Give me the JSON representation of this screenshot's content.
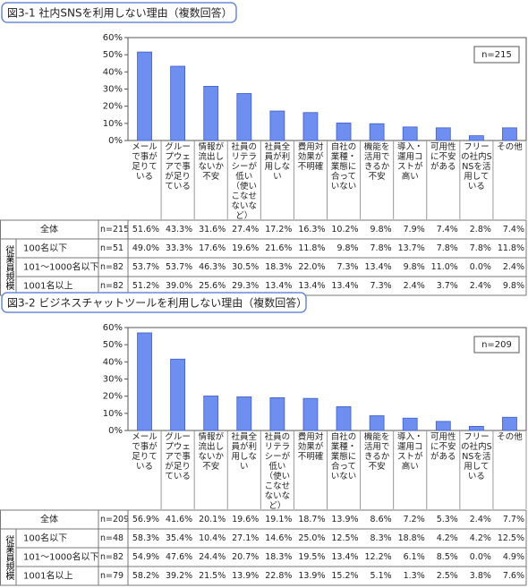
{
  "chart_data": [
    {
      "type": "bar",
      "title": "図3-1 社内SNSを利用しない理由（複数回答）",
      "n_label": "n=215",
      "categories": [
        "メールで事が足りている",
        "グループウェアで事が足りている",
        "情報が流出しないか不安",
        "社員のリテラシーが低い（使いこなせないなど）",
        "社員全員が利用しない",
        "費用対効果が不明確",
        "自社の業種・業態に合っていない",
        "機能を活用できるか不安",
        "導入・運用コストが高い",
        "可用性に不安がある",
        "フリーの社内SNSを活用している",
        "その他"
      ],
      "values": [
        51.6,
        43.3,
        31.6,
        27.4,
        17.2,
        16.3,
        10.2,
        9.8,
        7.9,
        7.4,
        2.8,
        7.4
      ],
      "value_labels": [
        "51.6%",
        "43.3%",
        "31.6%",
        "27.4%",
        "17.2%",
        "16.3%",
        "10.2%",
        "9.8%",
        "7.9%",
        "7.4%",
        "2.8%",
        "7.4%"
      ],
      "color": "#6e8ef0",
      "ylim": [
        0,
        60
      ],
      "yticks": [
        {
          "value": 0,
          "label": "0%"
        },
        {
          "value": 10,
          "label": "10%"
        },
        {
          "value": 20,
          "label": "20%"
        },
        {
          "value": 30,
          "label": "30%"
        },
        {
          "value": 40,
          "label": "40%"
        },
        {
          "value": 50,
          "label": "50%"
        },
        {
          "value": 60,
          "label": "60%"
        }
      ],
      "table": {
        "overall_label": "全体",
        "group_label": "従業員規模",
        "rows": [
          {
            "label": "100名以下",
            "n_label": "n=51",
            "cells": [
              "49.0%",
              "33.3%",
              "17.6%",
              "19.6%",
              "21.6%",
              "11.8%",
              "9.8%",
              "7.8%",
              "13.7%",
              "7.8%",
              "7.8%",
              "11.8%"
            ]
          },
          {
            "label": "101〜1000名以下",
            "n_label": "n=82",
            "cells": [
              "53.7%",
              "53.7%",
              "46.3%",
              "30.5%",
              "18.3%",
              "22.0%",
              "7.3%",
              "13.4%",
              "9.8%",
              "11.0%",
              "0.0%",
              "2.4%"
            ]
          },
          {
            "label": "1001名以上",
            "n_label": "n=82",
            "cells": [
              "51.2%",
              "39.0%",
              "25.6%",
              "29.3%",
              "13.4%",
              "13.4%",
              "13.4%",
              "7.3%",
              "2.4%",
              "3.7%",
              "2.4%",
              "9.8%"
            ]
          }
        ]
      }
    },
    {
      "type": "bar",
      "title": "図3-2 ビジネスチャットツールを利用しない理由（複数回答）",
      "n_label": "n=209",
      "categories": [
        "メールで事が足りている",
        "グループウェアで事が足りている",
        "情報が流出しないか不安",
        "社員全員が利用しない",
        "社員のリテラシーが低い（使いこなせないなど）",
        "費用対効果が不明確",
        "自社の業種・業態に合っていない",
        "機能を活用できるか不安",
        "導入・運用コストが高い",
        "可用性に不安がある",
        "フリーの社内SNSを活用している",
        "その他"
      ],
      "values": [
        56.9,
        41.6,
        20.1,
        19.6,
        19.1,
        18.7,
        13.9,
        8.6,
        7.2,
        5.3,
        2.4,
        7.7
      ],
      "value_labels": [
        "56.9%",
        "41.6%",
        "20.1%",
        "19.6%",
        "19.1%",
        "18.7%",
        "13.9%",
        "8.6%",
        "7.2%",
        "5.3%",
        "2.4%",
        "7.7%"
      ],
      "color": "#6e8ef0",
      "ylim": [
        0,
        60
      ],
      "yticks": [
        {
          "value": 0,
          "label": "0%"
        },
        {
          "value": 10,
          "label": "10%"
        },
        {
          "value": 20,
          "label": "20%"
        },
        {
          "value": 30,
          "label": "30%"
        },
        {
          "value": 40,
          "label": "40%"
        },
        {
          "value": 50,
          "label": "50%"
        },
        {
          "value": 60,
          "label": "60%"
        }
      ],
      "table": {
        "overall_label": "全体",
        "group_label": "従業員規模",
        "rows": [
          {
            "label": "100名以下",
            "n_label": "n=48",
            "cells": [
              "58.3%",
              "35.4%",
              "10.4%",
              "27.1%",
              "14.6%",
              "25.0%",
              "12.5%",
              "8.3%",
              "18.8%",
              "4.2%",
              "4.2%",
              "12.5%"
            ]
          },
          {
            "label": "101〜1000名以下",
            "n_label": "n=82",
            "cells": [
              "54.9%",
              "47.6%",
              "24.4%",
              "20.7%",
              "18.3%",
              "19.5%",
              "13.4%",
              "12.2%",
              "6.1%",
              "8.5%",
              "0.0%",
              "4.9%"
            ]
          },
          {
            "label": "1001名以上",
            "n_label": "n=79",
            "cells": [
              "58.2%",
              "39.2%",
              "21.5%",
              "13.9%",
              "22.8%",
              "13.9%",
              "15.2%",
              "5.1%",
              "1.3%",
              "2.5%",
              "3.8%",
              "7.6%"
            ]
          }
        ]
      }
    }
  ]
}
